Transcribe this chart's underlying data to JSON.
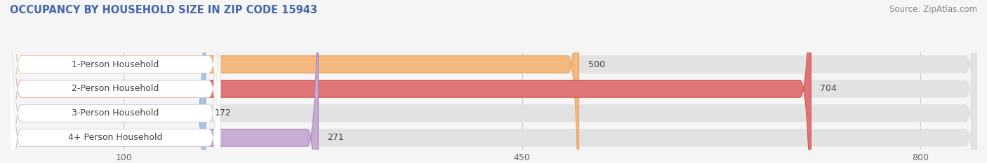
{
  "title": "OCCUPANCY BY HOUSEHOLD SIZE IN ZIP CODE 15943",
  "source": "Source: ZipAtlas.com",
  "categories": [
    "1-Person Household",
    "2-Person Household",
    "3-Person Household",
    "4+ Person Household"
  ],
  "values": [
    500,
    704,
    172,
    271
  ],
  "bar_colors": [
    "#f5b87e",
    "#e07575",
    "#aac4e0",
    "#c8acd4"
  ],
  "bar_edge_colors": [
    "#e8a060",
    "#cc5555",
    "#88aad0",
    "#aa88bb"
  ],
  "xlim_data": [
    0,
    850
  ],
  "xticks": [
    100,
    450,
    800
  ],
  "bg_color": "#f5f5f5",
  "bar_bg_color": "#e2e2e2",
  "title_fontsize": 10.5,
  "source_fontsize": 8.5,
  "label_fontsize": 9,
  "value_fontsize": 9,
  "tick_fontsize": 9,
  "title_color": "#4466aa",
  "source_color": "#888888",
  "label_color": "#444444",
  "value_color": "#444444",
  "grid_color": "#cccccc",
  "white_pill_color": "#ffffff",
  "white_pill_edge": "#dddddd"
}
